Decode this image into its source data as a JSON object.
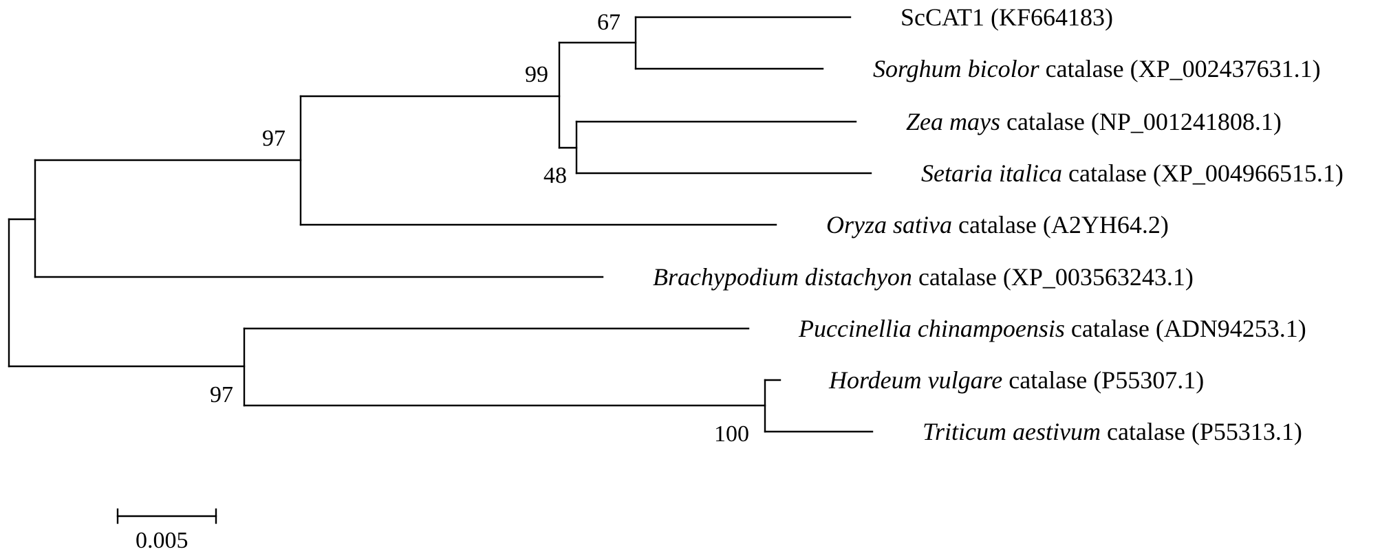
{
  "tree": {
    "taxa": [
      {
        "id": "sccat1",
        "species": "",
        "rest": "ScCAT1 (KF664183)"
      },
      {
        "id": "sorghum",
        "species": "Sorghum bicolor",
        "rest": " catalase (XP_002437631.1)"
      },
      {
        "id": "zea",
        "species": "Zea mays",
        "rest": " catalase (NP_001241808.1)"
      },
      {
        "id": "setaria",
        "species": "Setaria italica",
        "rest": " catalase (XP_004966515.1)"
      },
      {
        "id": "oryza",
        "species": "Oryza sativa",
        "rest": " catalase (A2YH64.2)"
      },
      {
        "id": "brachypodium",
        "species": "Brachypodium distachyon",
        "rest": " catalase (XP_003563243.1)"
      },
      {
        "id": "puccinellia",
        "species": "Puccinellia chinampoensis",
        "rest": " catalase (ADN94253.1)"
      },
      {
        "id": "hordeum",
        "species": "Hordeum vulgare",
        "rest": " catalase (P55307.1)"
      },
      {
        "id": "triticum",
        "species": "Triticum aestivum",
        "rest": " catalase (P55313.1)"
      }
    ],
    "bootstrap": {
      "sccat1_sorghum": "67",
      "zea_setaria": "48",
      "sorghum_group": "99",
      "oryza_group": "97",
      "pooideae_group": "97",
      "hordeum_triticum": "100"
    },
    "scale_bar": {
      "label": "0.005"
    }
  }
}
